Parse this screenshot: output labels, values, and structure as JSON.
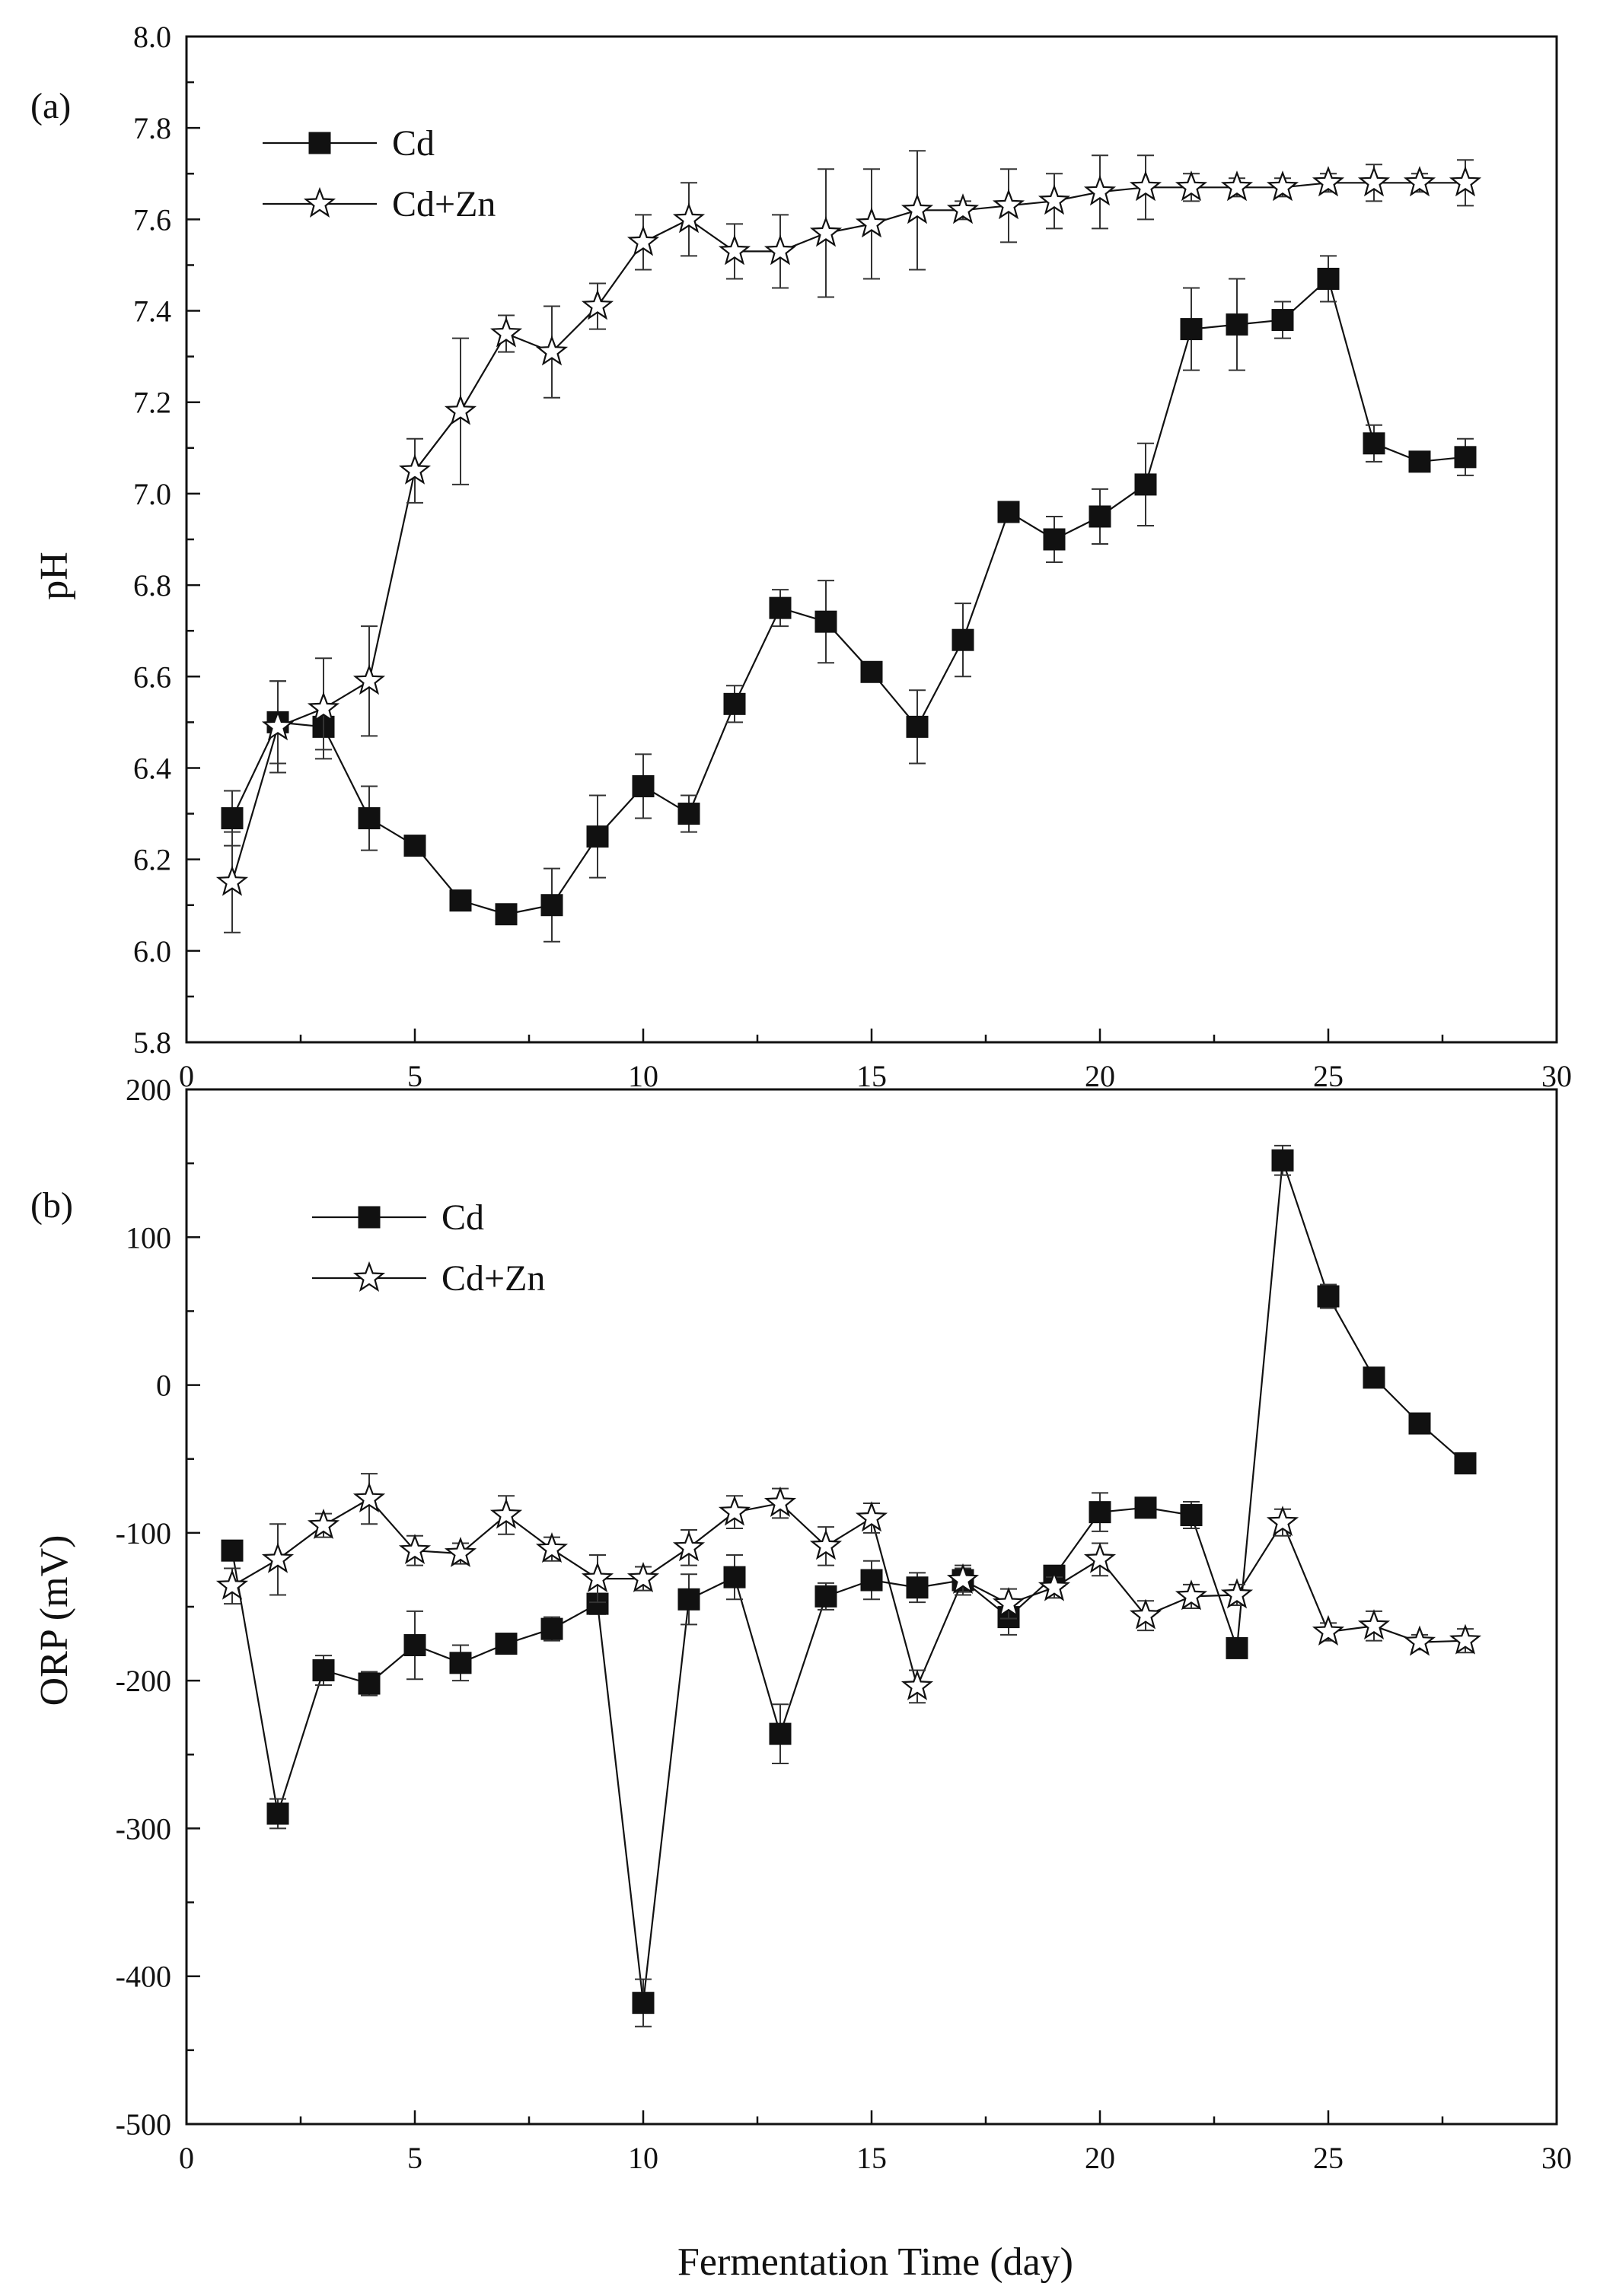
{
  "chart_data": [
    {
      "type": "line",
      "panel_label": "(a)",
      "xlabel": "",
      "ylabel": "pH",
      "xlim": [
        0,
        30
      ],
      "ylim": [
        5.8,
        8.0
      ],
      "xticks": [
        0,
        5,
        10,
        15,
        20,
        25,
        30
      ],
      "xtick_labels": [
        "0",
        "5",
        "10",
        "15",
        "20",
        "25",
        "30"
      ],
      "yticks": [
        5.8,
        6.0,
        6.2,
        6.4,
        6.6,
        6.8,
        7.0,
        7.2,
        7.4,
        7.6,
        7.8,
        8.0
      ],
      "ytick_labels": [
        "5.8",
        "6.0",
        "6.2",
        "6.4",
        "6.6",
        "6.8",
        "7.0",
        "7.2",
        "7.4",
        "7.6",
        "7.8",
        "8.0"
      ],
      "legend_position": "top-left",
      "grid": false,
      "x": [
        1,
        2,
        3,
        4,
        5,
        6,
        7,
        8,
        9,
        10,
        11,
        12,
        13,
        14,
        15,
        16,
        17,
        18,
        19,
        20,
        21,
        22,
        23,
        24,
        25,
        26,
        27,
        28
      ],
      "series": [
        {
          "name": "Cd",
          "marker": "filled-square",
          "values": [
            6.29,
            6.5,
            6.49,
            6.29,
            6.23,
            6.11,
            6.08,
            6.1,
            6.25,
            6.36,
            6.3,
            6.54,
            6.75,
            6.72,
            6.61,
            6.49,
            6.68,
            6.96,
            6.9,
            6.95,
            7.02,
            7.36,
            7.37,
            7.38,
            7.47,
            7.11,
            7.07,
            7.08
          ],
          "errors": [
            0.06,
            0.09,
            0.05,
            0.07,
            0.01,
            0.01,
            0.02,
            0.08,
            0.09,
            0.07,
            0.04,
            0.04,
            0.04,
            0.09,
            0.01,
            0.08,
            0.08,
            0.02,
            0.05,
            0.06,
            0.09,
            0.09,
            0.1,
            0.04,
            0.05,
            0.04,
            0.01,
            0.04
          ]
        },
        {
          "name": "Cd+Zn",
          "marker": "open-star",
          "values": [
            6.15,
            6.49,
            6.53,
            6.59,
            7.05,
            7.18,
            7.35,
            7.31,
            7.41,
            7.55,
            7.6,
            7.53,
            7.53,
            7.57,
            7.59,
            7.62,
            7.62,
            7.63,
            7.64,
            7.66,
            7.67,
            7.67,
            7.67,
            7.67,
            7.68,
            7.68,
            7.68,
            7.68
          ],
          "errors": [
            0.11,
            0.1,
            0.11,
            0.12,
            0.07,
            0.16,
            0.04,
            0.1,
            0.05,
            0.06,
            0.08,
            0.06,
            0.08,
            0.14,
            0.12,
            0.13,
            0.02,
            0.08,
            0.06,
            0.08,
            0.07,
            0.03,
            0.02,
            0.02,
            0.02,
            0.04,
            0.02,
            0.05
          ]
        }
      ]
    },
    {
      "type": "line",
      "panel_label": "(b)",
      "xlabel": "Fermentation Time (day)",
      "ylabel": "ORP (mV)",
      "xlim": [
        0,
        30
      ],
      "ylim": [
        -500,
        200
      ],
      "xticks": [
        0,
        5,
        10,
        15,
        20,
        25,
        30
      ],
      "xtick_labels": [
        "0",
        "5",
        "10",
        "15",
        "20",
        "25",
        "30"
      ],
      "yticks": [
        -500,
        -400,
        -300,
        -200,
        -100,
        0,
        100,
        200
      ],
      "ytick_labels": [
        "-500",
        "-400",
        "-300",
        "-200",
        "-100",
        "0",
        "100",
        "200"
      ],
      "legend_position": "top-left",
      "grid": false,
      "x": [
        1,
        2,
        3,
        4,
        5,
        6,
        7,
        8,
        9,
        10,
        11,
        12,
        13,
        14,
        15,
        16,
        17,
        18,
        19,
        20,
        21,
        22,
        23,
        24,
        25,
        26,
        27,
        28
      ],
      "series": [
        {
          "name": "Cd",
          "marker": "filled-square",
          "values": [
            -112,
            -290,
            -193,
            -202,
            -176,
            -188,
            -175,
            -165,
            -148,
            -418,
            -145,
            -130,
            -236,
            -143,
            -132,
            -137,
            -132,
            -157,
            -129,
            -86,
            -83,
            -88,
            -178,
            152,
            60,
            5,
            -26,
            -53
          ],
          "errors": [
            6,
            10,
            10,
            8,
            23,
            12,
            5,
            8,
            7,
            16,
            17,
            15,
            20,
            9,
            13,
            10,
            8,
            12,
            6,
            13,
            6,
            9,
            6,
            10,
            8,
            4,
            4,
            5
          ]
        },
        {
          "name": "Cd+Zn",
          "marker": "open-star",
          "values": [
            -136,
            -118,
            -95,
            -77,
            -112,
            -114,
            -88,
            -111,
            -131,
            -131,
            -110,
            -86,
            -80,
            -109,
            -90,
            -204,
            -132,
            -148,
            -137,
            -118,
            -156,
            -143,
            -142,
            -93,
            -167,
            -163,
            -174,
            -173
          ],
          "errors": [
            12,
            24,
            8,
            17,
            10,
            7,
            13,
            8,
            16,
            8,
            12,
            11,
            10,
            13,
            10,
            11,
            10,
            10,
            7,
            11,
            10,
            8,
            7,
            9,
            6,
            10,
            5,
            8
          ]
        }
      ]
    }
  ]
}
